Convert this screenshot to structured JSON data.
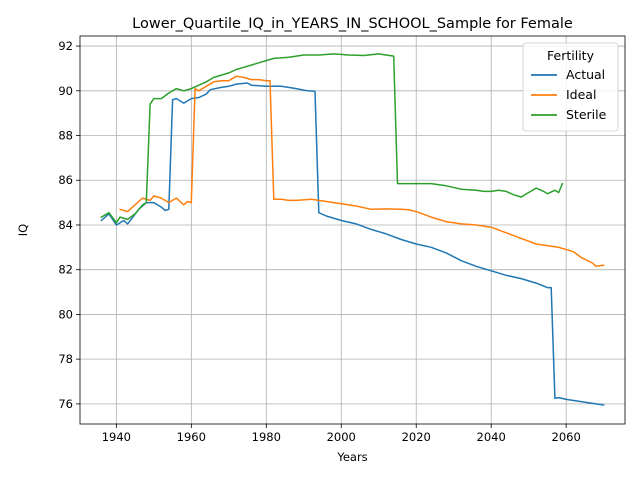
{
  "chart_data": {
    "type": "line",
    "title": "Lower_Quartile_IQ_in_YEARS_IN_SCHOOL_Sample for Female",
    "xlabel": "Years",
    "ylabel": "IQ",
    "xlim": [
      1930.3,
      2075.7
    ],
    "ylim": [
      75.1,
      92.45
    ],
    "xticks": [
      1940,
      1960,
      1980,
      2000,
      2020,
      2040,
      2060
    ],
    "yticks": [
      76,
      78,
      80,
      82,
      84,
      86,
      88,
      90,
      92
    ],
    "grid": true,
    "legend": {
      "title": "Fertility",
      "placement": "top-right"
    },
    "series": [
      {
        "name": "Actual",
        "color": "#1f77b4",
        "points": [
          [
            1936,
            84.2
          ],
          [
            1938,
            84.5
          ],
          [
            1940,
            84.0
          ],
          [
            1942,
            84.2
          ],
          [
            1943,
            84.05
          ],
          [
            1946,
            84.7
          ],
          [
            1948,
            85.0
          ],
          [
            1950,
            85.0
          ],
          [
            1952,
            84.8
          ],
          [
            1953,
            84.65
          ],
          [
            1954,
            84.7
          ],
          [
            1955,
            89.6
          ],
          [
            1956,
            89.65
          ],
          [
            1958,
            89.45
          ],
          [
            1960,
            89.65
          ],
          [
            1962,
            89.7
          ],
          [
            1964,
            89.85
          ],
          [
            1965,
            90.05
          ],
          [
            1968,
            90.15
          ],
          [
            1970,
            90.2
          ],
          [
            1972,
            90.3
          ],
          [
            1975,
            90.35
          ],
          [
            1976,
            90.25
          ],
          [
            1980,
            90.2
          ],
          [
            1984,
            90.2
          ],
          [
            1988,
            90.1
          ],
          [
            1991,
            90.0
          ],
          [
            1993,
            89.98
          ],
          [
            1994,
            84.55
          ],
          [
            1996,
            84.4
          ],
          [
            2000,
            84.2
          ],
          [
            2004,
            84.05
          ],
          [
            2008,
            83.8
          ],
          [
            2012,
            83.6
          ],
          [
            2016,
            83.35
          ],
          [
            2020,
            83.15
          ],
          [
            2024,
            83.0
          ],
          [
            2028,
            82.75
          ],
          [
            2032,
            82.4
          ],
          [
            2036,
            82.15
          ],
          [
            2040,
            81.95
          ],
          [
            2044,
            81.75
          ],
          [
            2048,
            81.6
          ],
          [
            2052,
            81.4
          ],
          [
            2055,
            81.2
          ],
          [
            2056,
            81.2
          ],
          [
            2057,
            76.25
          ],
          [
            2058,
            76.28
          ],
          [
            2060,
            76.2
          ],
          [
            2064,
            76.1
          ],
          [
            2068,
            76.0
          ],
          [
            2070,
            75.95
          ]
        ]
      },
      {
        "name": "Ideal",
        "color": "#ff7f0e",
        "points": [
          [
            1941,
            84.7
          ],
          [
            1943,
            84.6
          ],
          [
            1945,
            84.9
          ],
          [
            1947,
            85.2
          ],
          [
            1949,
            85.1
          ],
          [
            1950,
            85.3
          ],
          [
            1952,
            85.2
          ],
          [
            1954,
            85.0
          ],
          [
            1956,
            85.2
          ],
          [
            1958,
            84.9
          ],
          [
            1959,
            85.05
          ],
          [
            1960,
            85.0
          ],
          [
            1961,
            90.1
          ],
          [
            1962,
            90.0
          ],
          [
            1964,
            90.2
          ],
          [
            1966,
            90.4
          ],
          [
            1968,
            90.45
          ],
          [
            1970,
            90.45
          ],
          [
            1972,
            90.65
          ],
          [
            1974,
            90.6
          ],
          [
            1976,
            90.5
          ],
          [
            1978,
            90.5
          ],
          [
            1980,
            90.45
          ],
          [
            1981,
            90.45
          ],
          [
            1982,
            85.15
          ],
          [
            1984,
            85.15
          ],
          [
            1986,
            85.1
          ],
          [
            1988,
            85.1
          ],
          [
            1992,
            85.15
          ],
          [
            1994,
            85.1
          ],
          [
            1998,
            85.0
          ],
          [
            2000,
            84.95
          ],
          [
            2004,
            84.85
          ],
          [
            2008,
            84.7
          ],
          [
            2012,
            84.72
          ],
          [
            2016,
            84.7
          ],
          [
            2018,
            84.68
          ],
          [
            2020,
            84.6
          ],
          [
            2024,
            84.35
          ],
          [
            2028,
            84.15
          ],
          [
            2032,
            84.05
          ],
          [
            2036,
            84.0
          ],
          [
            2040,
            83.9
          ],
          [
            2044,
            83.65
          ],
          [
            2048,
            83.4
          ],
          [
            2052,
            83.15
          ],
          [
            2056,
            83.05
          ],
          [
            2058,
            83.0
          ],
          [
            2062,
            82.8
          ],
          [
            2064,
            82.55
          ],
          [
            2067,
            82.3
          ],
          [
            2068,
            82.15
          ],
          [
            2070,
            82.2
          ]
        ]
      },
      {
        "name": "Sterile",
        "color": "#2ca02c",
        "points": [
          [
            1936,
            84.35
          ],
          [
            1938,
            84.55
          ],
          [
            1940,
            84.1
          ],
          [
            1941,
            84.35
          ],
          [
            1943,
            84.25
          ],
          [
            1945,
            84.5
          ],
          [
            1947,
            84.9
          ],
          [
            1948,
            85.0
          ],
          [
            1949,
            89.4
          ],
          [
            1950,
            89.65
          ],
          [
            1952,
            89.65
          ],
          [
            1954,
            89.9
          ],
          [
            1956,
            90.1
          ],
          [
            1958,
            90.0
          ],
          [
            1960,
            90.1
          ],
          [
            1962,
            90.25
          ],
          [
            1964,
            90.4
          ],
          [
            1966,
            90.6
          ],
          [
            1968,
            90.7
          ],
          [
            1970,
            90.8
          ],
          [
            1972,
            90.95
          ],
          [
            1974,
            91.05
          ],
          [
            1976,
            91.15
          ],
          [
            1978,
            91.25
          ],
          [
            1980,
            91.35
          ],
          [
            1982,
            91.45
          ],
          [
            1986,
            91.5
          ],
          [
            1990,
            91.6
          ],
          [
            1994,
            91.6
          ],
          [
            1998,
            91.65
          ],
          [
            2002,
            91.6
          ],
          [
            2006,
            91.58
          ],
          [
            2010,
            91.65
          ],
          [
            2014,
            91.55
          ],
          [
            2015,
            85.85
          ],
          [
            2017,
            85.85
          ],
          [
            2020,
            85.85
          ],
          [
            2024,
            85.85
          ],
          [
            2028,
            85.75
          ],
          [
            2032,
            85.6
          ],
          [
            2036,
            85.55
          ],
          [
            2038,
            85.5
          ],
          [
            2040,
            85.5
          ],
          [
            2042,
            85.55
          ],
          [
            2044,
            85.5
          ],
          [
            2046,
            85.35
          ],
          [
            2048,
            85.25
          ],
          [
            2050,
            85.45
          ],
          [
            2052,
            85.65
          ],
          [
            2054,
            85.5
          ],
          [
            2055,
            85.4
          ],
          [
            2057,
            85.55
          ],
          [
            2058,
            85.45
          ],
          [
            2059,
            85.85
          ]
        ]
      }
    ]
  }
}
